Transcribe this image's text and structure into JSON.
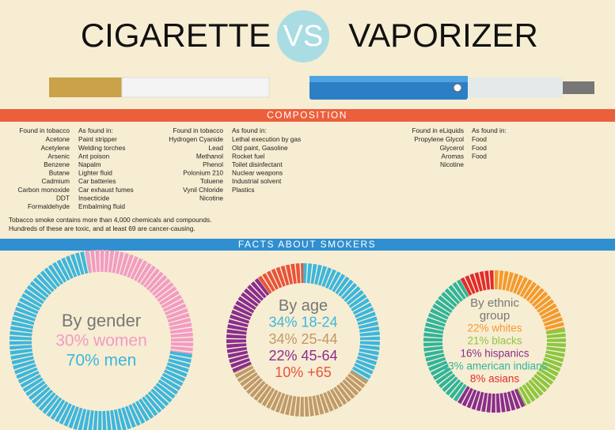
{
  "header": {
    "left": "CIGARETTE",
    "vs": "VS",
    "right": "VAPORIZER"
  },
  "composition": {
    "title": "COMPOSITION",
    "columns": [
      {
        "header": [
          "Found in tobacco",
          "As found in:"
        ],
        "rows": [
          [
            "Acetone",
            "Paint stripper"
          ],
          [
            "Acetylene",
            "Welding torches"
          ],
          [
            "Arsenic",
            "Ant poison"
          ],
          [
            "Benzene",
            "Napalm"
          ],
          [
            "Butane",
            "Lighter fluid"
          ],
          [
            "Cadmium",
            "Car batteries"
          ],
          [
            "Carbon monoxide",
            "Car exhaust fumes"
          ],
          [
            "DDT",
            "Insecticide"
          ],
          [
            "Formaldehyde",
            "Embalming fluid"
          ]
        ]
      },
      {
        "header": [
          "Found in tobacco",
          "As found in:"
        ],
        "rows": [
          [
            "Hydrogen Cyanide",
            "Lethal execution by gas"
          ],
          [
            "Lead",
            "Old paint, Gasoline"
          ],
          [
            "Methanol",
            "Rocket fuel"
          ],
          [
            "Phenol",
            "Toilet disinfectant"
          ],
          [
            "Polonium 210",
            "Nuclear weapons"
          ],
          [
            "Toluene",
            "Industrial solvent"
          ],
          [
            "Vynil Chloride",
            "Plastics"
          ],
          [
            "Nicotine"
          ]
        ]
      },
      {
        "header": [
          "Found in eLiquids",
          "As found in:"
        ],
        "rows": [
          [
            "Propylene Glycol",
            "Food"
          ],
          [
            "Glycerol",
            "Food"
          ],
          [
            "Aromas",
            "Food"
          ],
          [
            "Nicotine"
          ]
        ]
      }
    ],
    "note": [
      "Tobacco smoke contains more than 4,000 chemicals and compounds.",
      "Hundreds of these are toxic, and at least 69 are cancer-causing."
    ]
  },
  "facts": {
    "title": "FACTS ABOUT SMOKERS",
    "charts": [
      {
        "type": "donut",
        "title": [
          "By gender"
        ],
        "segments": [
          {
            "label": "30% women",
            "value": 30,
            "color": "#f29bc4"
          },
          {
            "label": "70% men",
            "value": 70,
            "color": "#3db6dc"
          }
        ]
      },
      {
        "type": "donut",
        "title": [
          "By age"
        ],
        "segments": [
          {
            "label": "34% 18-24",
            "value": 34,
            "color": "#3db6dc"
          },
          {
            "label": "34% 25-44",
            "value": 34,
            "color": "#c09a68"
          },
          {
            "label": "22% 45-64",
            "value": 22,
            "color": "#8a2e8c"
          },
          {
            "label": "10% +65",
            "value": 10,
            "color": "#e8543a"
          }
        ]
      },
      {
        "type": "donut",
        "title": [
          "By ethnic",
          "group"
        ],
        "segments": [
          {
            "label": "22% whites",
            "value": 22,
            "color": "#f39a2e"
          },
          {
            "label": "21% blacks",
            "value": 21,
            "color": "#8dc63f"
          },
          {
            "label": "16% hispanics",
            "value": 16,
            "color": "#8a2e8c"
          },
          {
            "label": "33% american indians",
            "value": 33,
            "color": "#2fb59a"
          },
          {
            "label": "8% asians",
            "value": 8,
            "color": "#e02c2c"
          }
        ]
      }
    ]
  }
}
